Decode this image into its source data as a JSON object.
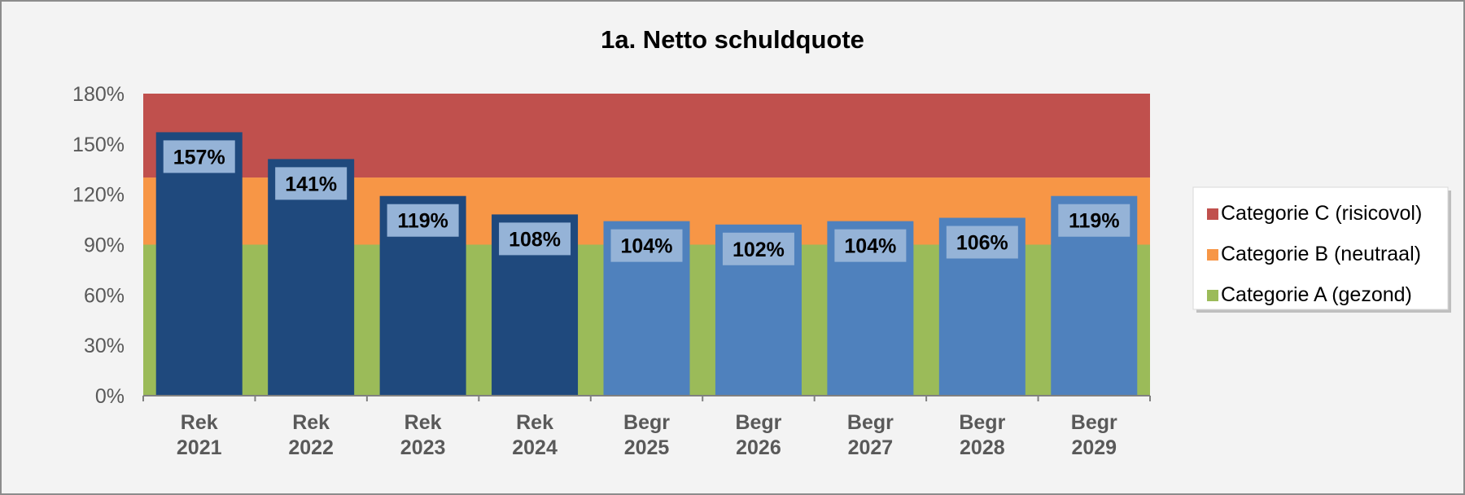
{
  "chart_data": {
    "type": "bar",
    "title": "1a. Netto schuldquote",
    "xlabel": "",
    "ylabel": "",
    "ylim": [
      0,
      180
    ],
    "yticks": [
      0,
      30,
      60,
      90,
      120,
      150,
      180
    ],
    "ytick_labels": [
      "0%",
      "30%",
      "60%",
      "90%",
      "120%",
      "150%",
      "180%"
    ],
    "categories": [
      [
        "Rek",
        "2021"
      ],
      [
        "Rek",
        "2022"
      ],
      [
        "Rek",
        "2023"
      ],
      [
        "Rek",
        "2024"
      ],
      [
        "Begr",
        "2025"
      ],
      [
        "Begr",
        "2026"
      ],
      [
        "Begr",
        "2027"
      ],
      [
        "Begr",
        "2028"
      ],
      [
        "Begr",
        "2029"
      ]
    ],
    "values": [
      157,
      141,
      119,
      108,
      104,
      102,
      104,
      106,
      119
    ],
    "data_labels": [
      "157%",
      "141%",
      "119%",
      "108%",
      "104%",
      "102%",
      "104%",
      "106%",
      "119%"
    ],
    "bar_colors": [
      "#1f497d",
      "#1f497d",
      "#1f497d",
      "#1f497d",
      "#4f81bd",
      "#4f81bd",
      "#4f81bd",
      "#4f81bd",
      "#4f81bd"
    ],
    "bands": [
      {
        "name": "Categorie A (gezond)",
        "from": 0,
        "to": 90,
        "color": "#9bbb59"
      },
      {
        "name": "Categorie B (neutraal)",
        "from": 90,
        "to": 130,
        "color": "#f79646"
      },
      {
        "name": "Categorie C (risicovol)",
        "from": 130,
        "to": 180,
        "color": "#c0504d"
      }
    ],
    "legend": {
      "position": "right",
      "items": [
        {
          "label": "Categorie C (risicovol)",
          "color": "#c0504d"
        },
        {
          "label": "Categorie B (neutraal)",
          "color": "#f79646"
        },
        {
          "label": "Categorie A (gezond)",
          "color": "#9bbb59"
        }
      ]
    },
    "grid": false
  }
}
